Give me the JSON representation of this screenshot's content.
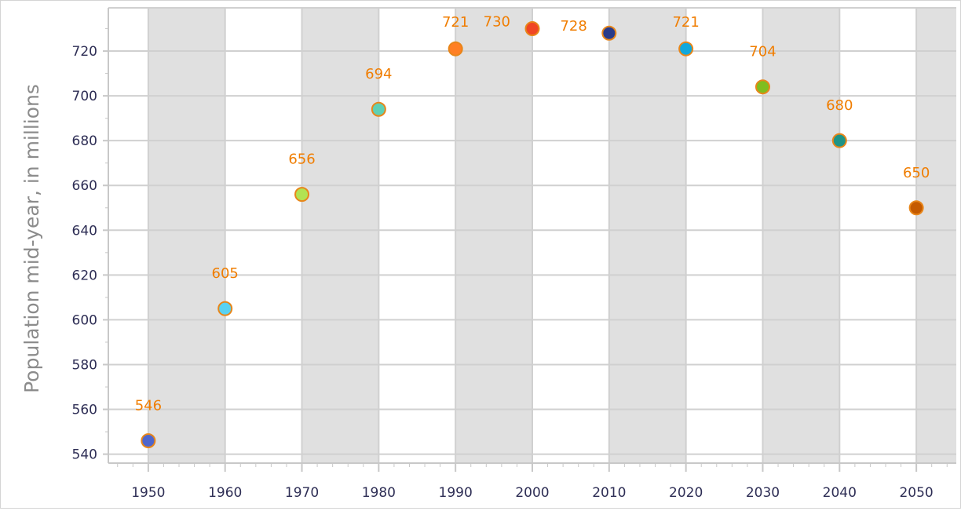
{
  "chart_data": {
    "type": "scatter",
    "title": "",
    "xlabel": "",
    "ylabel": "Population mid-year, in millions",
    "x": [
      1950,
      1960,
      1970,
      1980,
      1990,
      2000,
      2010,
      2020,
      2030,
      2040,
      2050
    ],
    "values": [
      546,
      605,
      656,
      694,
      721,
      730,
      728,
      721,
      704,
      680,
      650
    ],
    "data_labels": [
      "546",
      "605",
      "656",
      "694",
      "721",
      "730",
      "728",
      "721",
      "704",
      "680",
      "650"
    ],
    "point_colors": [
      "#4f66cc",
      "#5ad2f2",
      "#b2e252",
      "#5fd0b4",
      "#ff7f24",
      "#f04624",
      "#2a3c8a",
      "#10a8dc",
      "#80bd1e",
      "#1f9486",
      "#c45a00"
    ],
    "point_border_color": "#e8861a",
    "label_color": "#f07d00",
    "xlim": [
      1944.8,
      2055.2
    ],
    "ylim": [
      536,
      739.3
    ],
    "x_ticks": [
      "1950",
      "1960",
      "1970",
      "1980",
      "1990",
      "2000",
      "2010",
      "2020",
      "2030",
      "2040",
      "2050"
    ],
    "y_ticks": [
      "540",
      "560",
      "580",
      "600",
      "620",
      "640",
      "660",
      "680",
      "700",
      "720"
    ],
    "grid": true,
    "alternating_bands": true,
    "legend": "none"
  }
}
